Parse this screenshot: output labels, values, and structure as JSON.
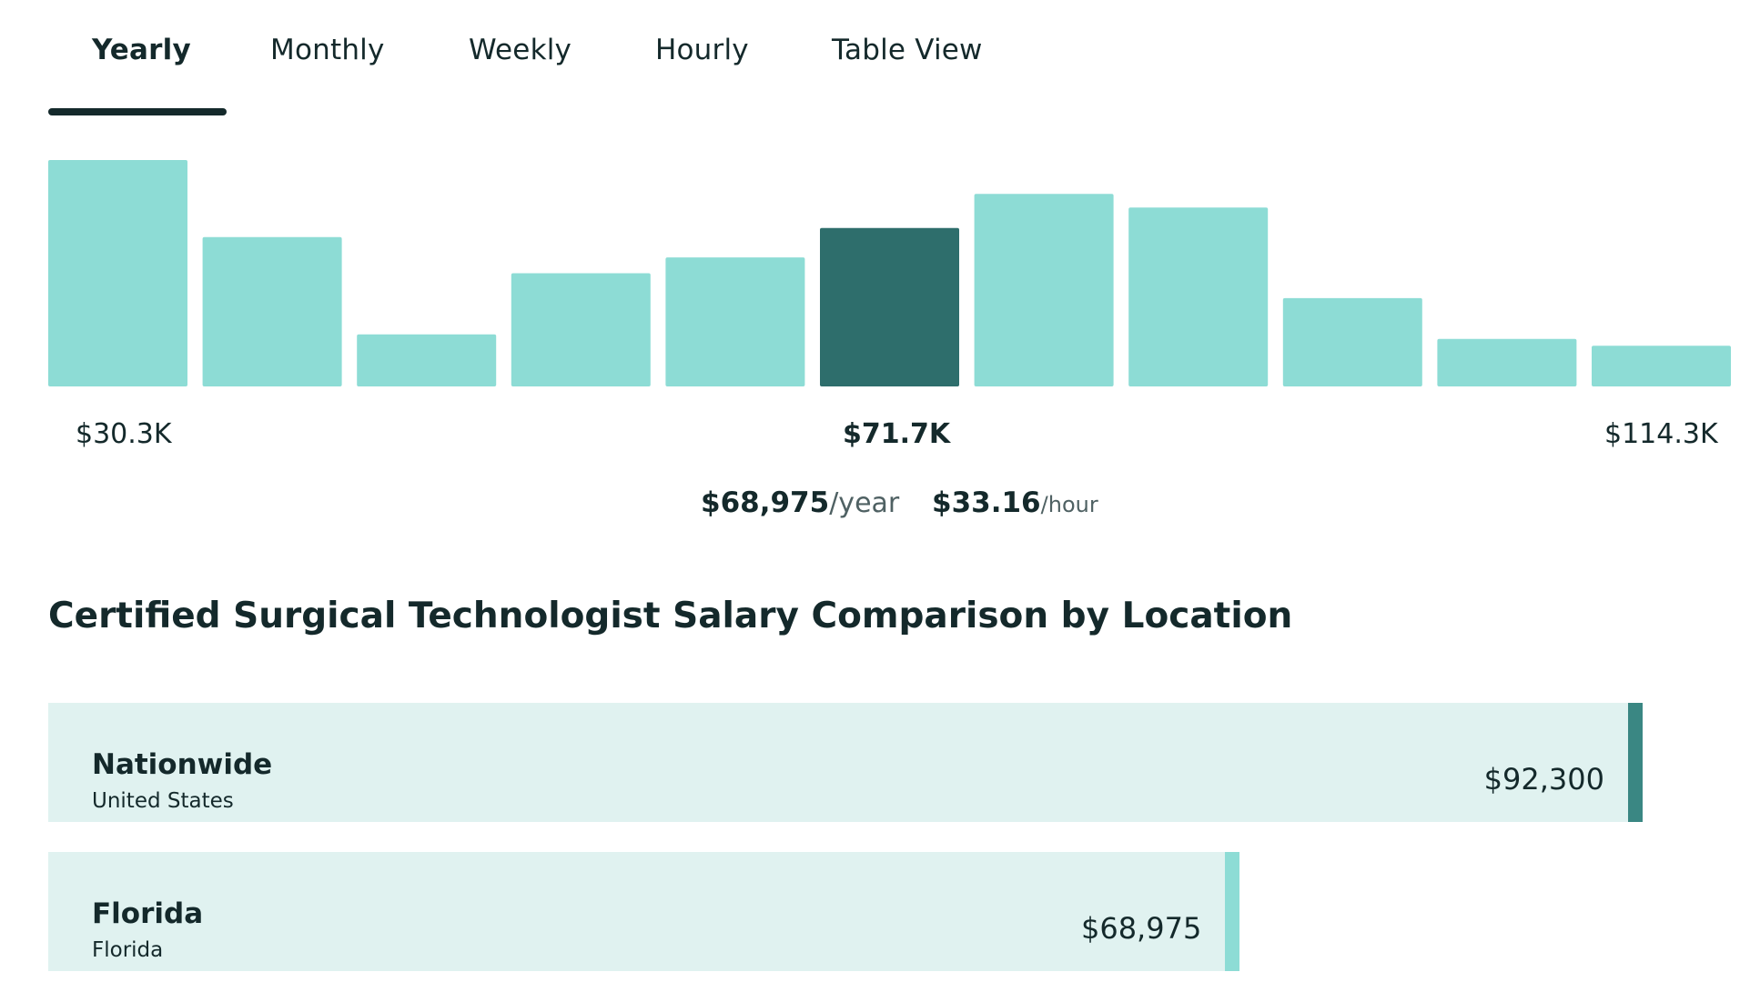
{
  "tabs": [
    {
      "label": "Yearly",
      "active": true
    },
    {
      "label": "Monthly",
      "active": false
    },
    {
      "label": "Weekly",
      "active": false
    },
    {
      "label": "Hourly",
      "active": false
    },
    {
      "label": "Table View",
      "active": false
    }
  ],
  "colors": {
    "bar": "#8ddcd5",
    "bar_highlight": "#2e6e6c",
    "text": "#14292b",
    "row_bg": "#e0f2f0",
    "marker_nationwide": "#3a8783",
    "marker_state": "#8ddcd5"
  },
  "chart_data": {
    "type": "bar",
    "title": "",
    "xlabel": "",
    "ylabel": "",
    "bins": 11,
    "values": [
      100,
      66,
      23,
      50,
      57,
      70,
      85,
      79,
      39,
      21,
      18
    ],
    "highlight_index": 5,
    "ylim": [
      0,
      100
    ],
    "tick_labels": {
      "min": "$30.3K",
      "median": "$71.7K",
      "max": "$114.3K"
    }
  },
  "summary": {
    "yearly_amount": "$68,975",
    "yearly_unit": "/year",
    "hourly_amount": "$33.16",
    "hourly_unit": "/hour"
  },
  "comparison": {
    "title": "Certified Surgical Technologist Salary Comparison by Location",
    "rows": [
      {
        "name": "Nationwide",
        "sub": "United States",
        "value_label": "$92,300",
        "value": 92300
      },
      {
        "name": "Florida",
        "sub": "Florida",
        "value_label": "$68,975",
        "value": 68975
      }
    ]
  }
}
